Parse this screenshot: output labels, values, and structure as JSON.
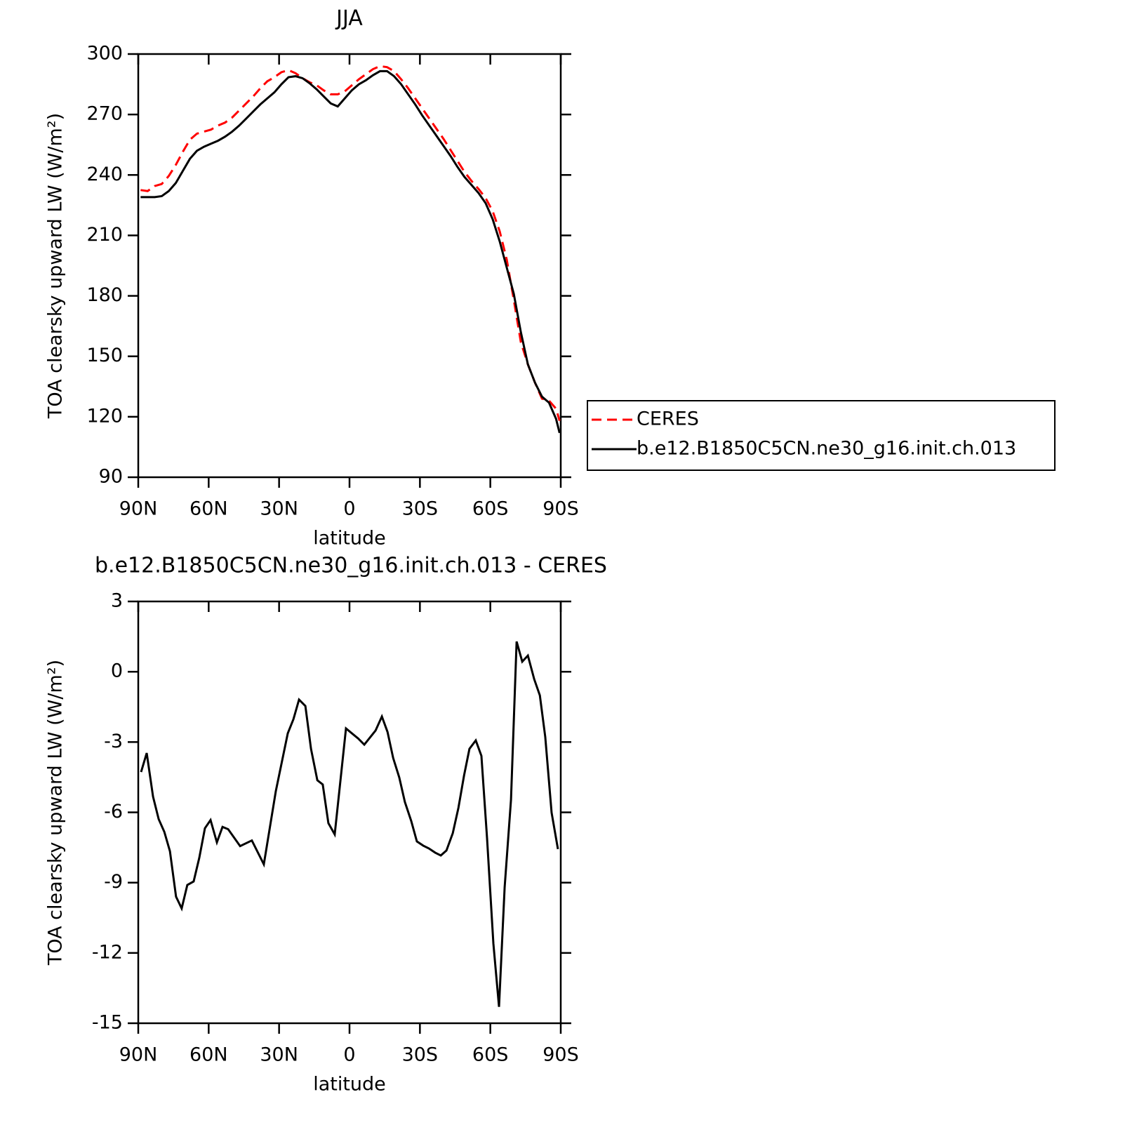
{
  "chart_data": [
    {
      "type": "line",
      "title": "JJA",
      "xlabel": "latitude",
      "ylabel": "TOA clearsky upward LW (W/m²)",
      "x": [
        89,
        86,
        83,
        80,
        77,
        74,
        71,
        68,
        65,
        62,
        59,
        56,
        53,
        50,
        47,
        44,
        41,
        38,
        35,
        32,
        29,
        26,
        23,
        20,
        17,
        14,
        11,
        8,
        5,
        2,
        -1,
        -4,
        -7,
        -10,
        -13,
        -16,
        -19,
        -22,
        -25,
        -28,
        -31,
        -34,
        -37,
        -40,
        -43,
        -46,
        -49,
        -52,
        -55,
        -58,
        -61,
        -64,
        -67,
        -70,
        -73,
        -76,
        -79,
        -82,
        -85,
        -88,
        -89.5
      ],
      "series": [
        {
          "name": "CERES",
          "color": "#ff0000",
          "dashed": true,
          "values": [
            232.5,
            232,
            234.5,
            235.5,
            239.5,
            245,
            251.5,
            257.5,
            260.5,
            261.5,
            262.5,
            264.5,
            266,
            268.5,
            272,
            275.5,
            279,
            283,
            286.5,
            288.5,
            291,
            292,
            290.5,
            288,
            286,
            284.5,
            282,
            280,
            280,
            281.5,
            284.5,
            287.5,
            290,
            292.5,
            294,
            293.5,
            291.5,
            287.5,
            283,
            278,
            273,
            268,
            263,
            258,
            252.5,
            247,
            241.5,
            237,
            233,
            228.5,
            222,
            212,
            198,
            178,
            157,
            146,
            137,
            129,
            128,
            124,
            118
          ]
        },
        {
          "name": "b.e12.B1850C5CN.ne30_g16.init.ch.013",
          "color": "#000000",
          "dashed": false,
          "values": [
            229,
            229,
            229,
            229.5,
            232,
            236,
            242,
            248,
            252,
            254,
            255.5,
            257,
            259,
            261.5,
            264.5,
            268,
            271.5,
            275,
            278,
            281,
            285,
            288.5,
            289,
            288,
            285.5,
            282.5,
            279,
            275.5,
            274,
            278,
            282,
            285,
            287,
            289.5,
            291.5,
            291.5,
            289,
            285,
            280,
            275,
            269.5,
            264.5,
            259.5,
            254.5,
            249.5,
            244,
            239,
            235,
            231,
            226,
            218,
            207,
            194,
            181,
            162,
            146,
            137,
            130,
            127,
            119,
            112
          ]
        }
      ],
      "xlim": [
        90,
        -90
      ],
      "xticks": [
        {
          "value": 90,
          "label": "90N"
        },
        {
          "value": 60,
          "label": "60N"
        },
        {
          "value": 30,
          "label": "30N"
        },
        0,
        {
          "value": -30,
          "label": "30S"
        },
        {
          "value": -60,
          "label": "60S"
        },
        {
          "value": -90,
          "label": "90S"
        }
      ],
      "ylim": [
        90,
        300
      ],
      "yticks": [
        90,
        120,
        150,
        180,
        210,
        240,
        270,
        300
      ],
      "legend": "right"
    },
    {
      "type": "line",
      "title": "b.e12.B1850C5CN.ne30_g16.init.ch.013 - CERES",
      "xlabel": "latitude",
      "ylabel": "TOA clearsky upward LW (W/m²)",
      "x": [
        88.8,
        86.4,
        83.7,
        81.3,
        78.9,
        76.5,
        73.9,
        71.5,
        69.1,
        66.4,
        64.0,
        61.6,
        59.2,
        56.5,
        54.1,
        51.7,
        46.6,
        41.6,
        36.5,
        31.4,
        26.3,
        23.9,
        21.5,
        18.8,
        16.4,
        13.7,
        11.4,
        9.0,
        6.3,
        1.5,
        -3.6,
        -6.3,
        -11.1,
        -13.8,
        -16.2,
        -18.6,
        -21.2,
        -23.6,
        -26.3,
        -28.7,
        -31.4,
        -33.8,
        -36.5,
        -38.9,
        -41.3,
        -44.0,
        -46.4,
        -48.8,
        -51.1,
        -53.8,
        -56.2,
        -58.6,
        -61.3,
        -63.7,
        -66.1,
        -68.8,
        -71.2,
        -73.6,
        -76.0,
        -78.7,
        -81.1,
        -83.4,
        -86.1,
        -88.8
      ],
      "series": [
        {
          "color": "#000000",
          "dashed": false,
          "values": [
            -4.28,
            -3.47,
            -5.33,
            -6.29,
            -6.83,
            -7.66,
            -9.6,
            -10.1,
            -9.1,
            -8.95,
            -7.94,
            -6.68,
            -6.33,
            -7.28,
            -6.62,
            -6.72,
            -7.44,
            -7.2,
            -8.22,
            -5.1,
            -2.63,
            -2.03,
            -1.19,
            -1.46,
            -3.29,
            -4.63,
            -4.81,
            -6.46,
            -6.94,
            -2.42,
            -2.84,
            -3.11,
            -2.51,
            -1.91,
            -2.57,
            -3.68,
            -4.51,
            -5.56,
            -6.37,
            -7.24,
            -7.42,
            -7.54,
            -7.72,
            -7.84,
            -7.63,
            -6.89,
            -5.81,
            -4.43,
            -3.29,
            -2.93,
            -3.59,
            -7.1,
            -11.6,
            -14.3,
            -9.2,
            -5.47,
            1.29,
            0.43,
            0.69,
            -0.32,
            -1.01,
            -2.78,
            -6.01,
            -7.57
          ]
        }
      ],
      "xlim": [
        90,
        -90
      ],
      "xticks": [
        {
          "value": 90,
          "label": "90N"
        },
        {
          "value": 60,
          "label": "60N"
        },
        {
          "value": 30,
          "label": "30N"
        },
        0,
        {
          "value": -30,
          "label": "30S"
        },
        {
          "value": -60,
          "label": "60S"
        },
        {
          "value": -90,
          "label": "90S"
        }
      ],
      "ylim": [
        -15,
        3
      ],
      "yticks": [
        -15,
        -12,
        -9,
        -6,
        -3,
        0,
        3
      ]
    }
  ]
}
